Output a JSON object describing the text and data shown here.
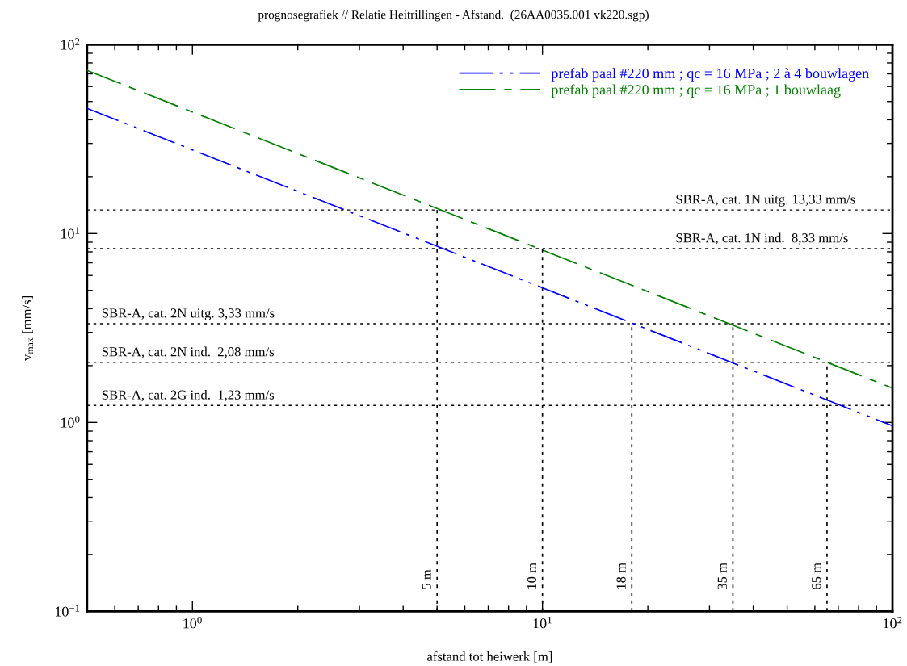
{
  "chart_data": {
    "type": "line",
    "title": "prognosegrafiek // Relatie Heitrillingen - Afstand.  (26AA0035.001 vk220.sgp)",
    "xlabel": "afstand tot heiwerk [m]",
    "ylabel": "v$_{max}$ [mm/s]",
    "log": "xy",
    "xlim": [
      0.5,
      100
    ],
    "ylim": [
      0.1,
      100
    ],
    "xticks": [
      {
        "value": 1,
        "label": "10$^{0}$"
      },
      {
        "value": 10,
        "label": "10$^{1}$"
      },
      {
        "value": 100,
        "label": "10$^{2}$"
      }
    ],
    "yticks": [
      {
        "value": 0.1,
        "label": "10$^{−1}$"
      },
      {
        "value": 1,
        "label": "10$^{0}$"
      },
      {
        "value": 10,
        "label": "10$^{1}$"
      },
      {
        "value": 100,
        "label": "10$^{2}$"
      }
    ],
    "legend": "top right",
    "marker": "none",
    "series": [
      {
        "name": "prefab paal #220 mm ; qc = 16 MPa ; 2 à 4 bouwlagen",
        "color": "#0000ff",
        "line_style": "dashdot",
        "x": [
          0.5,
          100
        ],
        "values": [
          46,
          0.96
        ]
      },
      {
        "name": "prefab paal #220 mm ; qc = 16 MPa ; 1 bouwlaag",
        "color": "#008000",
        "line_style": "dashed",
        "x": [
          0.5,
          100
        ],
        "values": [
          73,
          1.52
        ]
      },
      {
        "color": "#000000",
        "line_style": "dotted",
        "x": [
          5,
          5
        ],
        "values": [
          0.1,
          13.33
        ]
      },
      {
        "color": "#000000",
        "line_style": "dotted",
        "x": [
          10,
          10
        ],
        "values": [
          0.1,
          8.33
        ]
      },
      {
        "color": "#000000",
        "line_style": "dotted",
        "x": [
          18,
          18
        ],
        "values": [
          0.1,
          3.33
        ]
      },
      {
        "color": "#000000",
        "line_style": "dotted",
        "x": [
          35,
          35
        ],
        "values": [
          0.1,
          3.33
        ]
      },
      {
        "color": "#000000",
        "line_style": "dotted",
        "x": [
          65,
          65
        ],
        "values": [
          0.1,
          2.08
        ]
      }
    ],
    "ref_lines": [
      {
        "axis": "y",
        "value": 13.33,
        "color": "#000000",
        "line_style": "dotted"
      },
      {
        "axis": "y",
        "value": 8.33,
        "color": "#000000",
        "line_style": "dotted"
      },
      {
        "axis": "y",
        "value": 3.33,
        "color": "#000000",
        "line_style": "dotted"
      },
      {
        "axis": "y",
        "value": 2.08,
        "color": "#000000",
        "line_style": "dotted"
      },
      {
        "axis": "y",
        "value": 1.23,
        "color": "#000000",
        "line_style": "dotted"
      }
    ],
    "annotations": [
      {
        "text": "SBR-A, cat. 1N uitg. 13,33 mm/s",
        "x": 24,
        "y": 13.33
      },
      {
        "text": "SBR-A, cat. 1N ind.  8,33 mm/s",
        "x": 24,
        "y": 8.33
      },
      {
        "text": "SBR-A, cat. 2N uitg. 3,33 mm/s",
        "x": 0.55,
        "y": 3.33
      },
      {
        "text": "SBR-A, cat. 2N ind.  2,08 mm/s",
        "x": 0.55,
        "y": 2.08
      },
      {
        "text": "SBR-A, cat. 2G ind.  1,23 mm/s",
        "x": 0.55,
        "y": 1.23
      },
      {
        "text": "5 m",
        "x": 5,
        "y": 0.13
      },
      {
        "text": "10 m",
        "x": 10,
        "y": 0.13
      },
      {
        "text": "18 m",
        "x": 18,
        "y": 0.13
      },
      {
        "text": "35 m",
        "x": 35,
        "y": 0.13
      },
      {
        "text": "65 m",
        "x": 65,
        "y": 0.13
      }
    ]
  }
}
